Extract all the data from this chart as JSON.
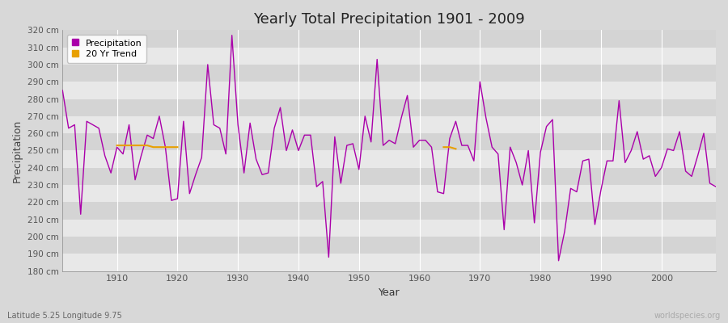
{
  "title": "Yearly Total Precipitation 1901 - 2009",
  "xlabel": "Year",
  "ylabel": "Precipitation",
  "subtitle": "Latitude 5.25 Longitude 9.75",
  "watermark": "worldspecies.org",
  "line_color": "#aa00aa",
  "trend_color": "#e8a000",
  "fig_bg_color": "#d8d8d8",
  "plot_bg_color": "#d8d8d8",
  "band_color_light": "#e0e0e0",
  "band_color_dark": "#cccccc",
  "ylim": [
    180,
    320
  ],
  "yticks": [
    180,
    190,
    200,
    210,
    220,
    230,
    240,
    250,
    260,
    270,
    280,
    290,
    300,
    310,
    320
  ],
  "xlim": [
    1901,
    2009
  ],
  "xticks": [
    1910,
    1920,
    1930,
    1940,
    1950,
    1960,
    1970,
    1980,
    1990,
    2000
  ],
  "years": [
    1901,
    1902,
    1903,
    1904,
    1905,
    1906,
    1907,
    1908,
    1909,
    1910,
    1911,
    1912,
    1913,
    1914,
    1915,
    1916,
    1917,
    1918,
    1919,
    1920,
    1921,
    1922,
    1923,
    1924,
    1925,
    1926,
    1927,
    1928,
    1929,
    1930,
    1931,
    1932,
    1933,
    1934,
    1935,
    1936,
    1937,
    1938,
    1939,
    1940,
    1941,
    1942,
    1943,
    1944,
    1945,
    1946,
    1947,
    1948,
    1949,
    1950,
    1951,
    1952,
    1953,
    1954,
    1955,
    1956,
    1957,
    1958,
    1959,
    1960,
    1961,
    1962,
    1963,
    1964,
    1965,
    1966,
    1967,
    1968,
    1969,
    1970,
    1971,
    1972,
    1973,
    1974,
    1975,
    1976,
    1977,
    1978,
    1979,
    1980,
    1981,
    1982,
    1983,
    1984,
    1985,
    1986,
    1987,
    1988,
    1989,
    1990,
    1991,
    1992,
    1993,
    1994,
    1995,
    1996,
    1997,
    1998,
    1999,
    2000,
    2001,
    2002,
    2003,
    2004,
    2005,
    2006,
    2007,
    2008,
    2009
  ],
  "precip": [
    285,
    263,
    265,
    213,
    267,
    265,
    263,
    247,
    237,
    252,
    248,
    265,
    233,
    247,
    259,
    257,
    270,
    252,
    221,
    222,
    267,
    225,
    236,
    246,
    300,
    265,
    263,
    248,
    317,
    265,
    237,
    266,
    245,
    236,
    237,
    263,
    275,
    250,
    262,
    250,
    259,
    259,
    229,
    232,
    188,
    258,
    231,
    253,
    254,
    239,
    270,
    255,
    303,
    253,
    256,
    254,
    269,
    282,
    252,
    256,
    256,
    252,
    226,
    225,
    257,
    267,
    253,
    253,
    244,
    290,
    269,
    252,
    248,
    204,
    252,
    243,
    230,
    250,
    208,
    249,
    264,
    268,
    186,
    203,
    228,
    226,
    244,
    245,
    207,
    227,
    244,
    244,
    279,
    243,
    250,
    261,
    245,
    247,
    235,
    240,
    251,
    250,
    261,
    238,
    235,
    247,
    260,
    231,
    229
  ],
  "trend_seg1_years": [
    1910,
    1911,
    1912,
    1913,
    1914,
    1915,
    1916,
    1917,
    1918,
    1919,
    1920
  ],
  "trend_seg1_vals": [
    253,
    253,
    253,
    253,
    253,
    253,
    252,
    252,
    252,
    252,
    252
  ],
  "trend_seg2_years": [
    1964,
    1965,
    1966
  ],
  "trend_seg2_vals": [
    252,
    252,
    251
  ]
}
